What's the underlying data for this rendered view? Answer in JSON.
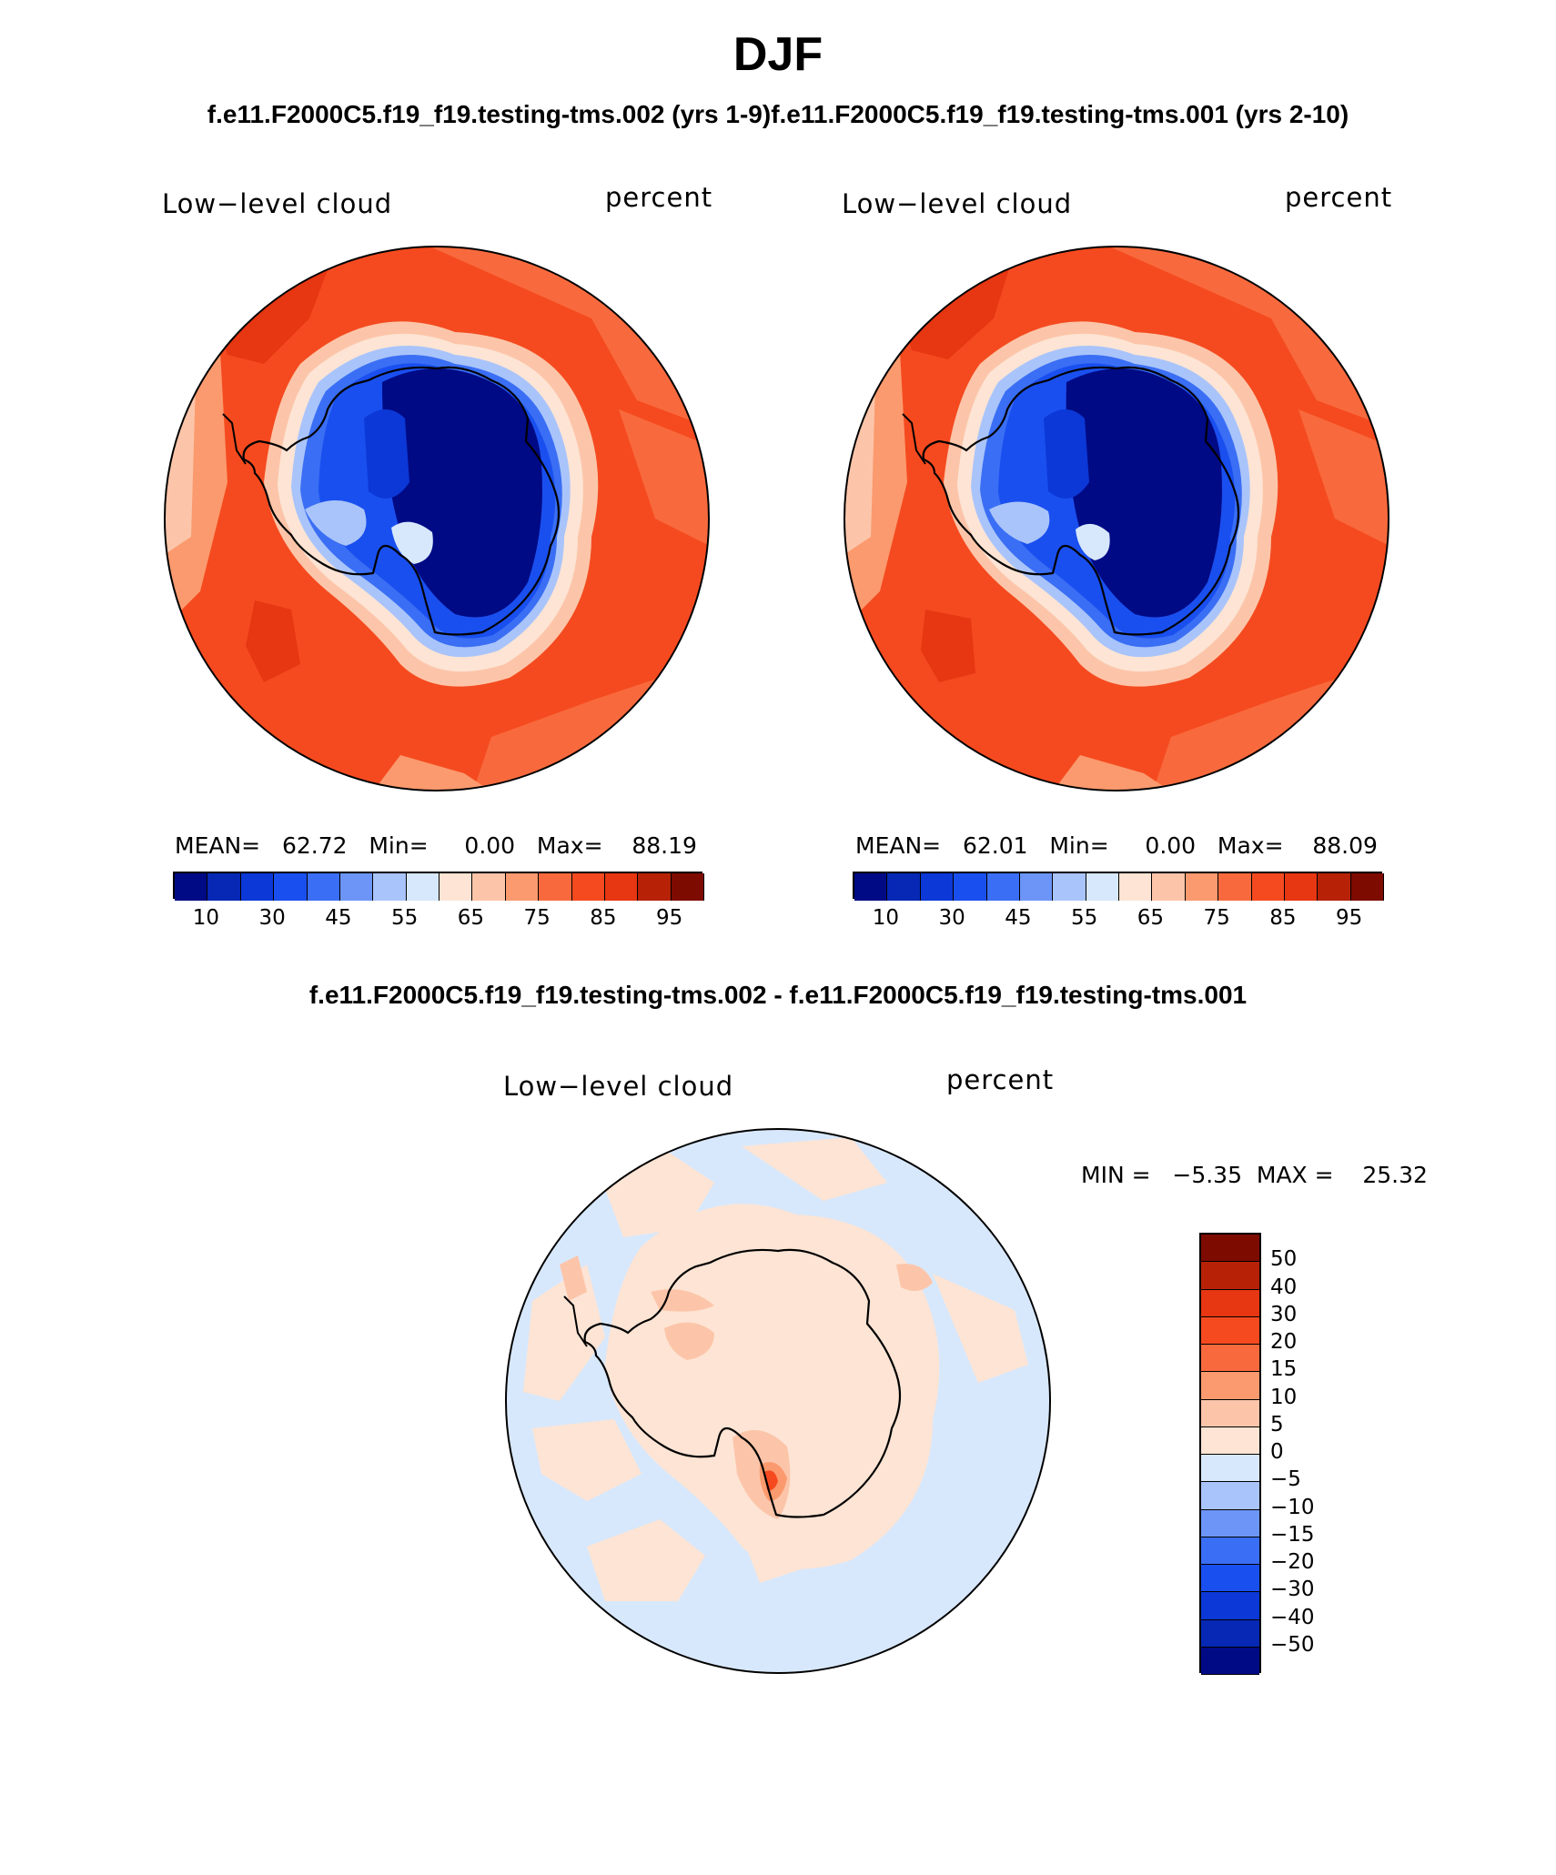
{
  "title": "DJF",
  "subtitle": "f.e11.F2000C5.f19_f19.testing-tms.002 (yrs 1-9)f.e11.F2000C5.f19_f19.testing-tms.001 (yrs 2-10)",
  "panels": [
    {
      "variable": "Low−level cloud",
      "units": "percent",
      "stats": "MEAN=   62.72   Min=     0.00   Max=    88.19"
    },
    {
      "variable": "Low−level cloud",
      "units": "percent",
      "stats": "MEAN=   62.01   Min=     0.00   Max=    88.09"
    }
  ],
  "colorbar": {
    "colors": [
      "#000a85",
      "#0628b4",
      "#0b38d6",
      "#1a4fef",
      "#3a6ef4",
      "#6c95f7",
      "#a9c4fa",
      "#d8e8fc",
      "#fde4d4",
      "#fcc5a9",
      "#fb9a6e",
      "#f86a3d",
      "#f54a1f",
      "#e63612",
      "#b72207",
      "#7d0b00"
    ],
    "tick_labels": [
      "10",
      "30",
      "45",
      "55",
      "65",
      "75",
      "85",
      "95"
    ]
  },
  "difference": {
    "title": "f.e11.F2000C5.f19_f19.testing-tms.002 - f.e11.F2000C5.f19_f19.testing-tms.001",
    "variable": "Low−level cloud",
    "units": "percent",
    "stats": "MIN =   −5.35  MAX =    25.32",
    "colorbar": {
      "colors_top_to_bottom": [
        "#7d0b00",
        "#b72207",
        "#e63612",
        "#f54a1f",
        "#f86a3d",
        "#fb9a6e",
        "#fcc5a9",
        "#fde4d4",
        "#d8e8fc",
        "#a9c4fa",
        "#6c95f7",
        "#3a6ef4",
        "#1a4fef",
        "#0b38d6",
        "#0628b4",
        "#000a85"
      ],
      "tick_labels": [
        "50",
        "40",
        "30",
        "20",
        "15",
        "10",
        "5",
        "0",
        "−5",
        "−10",
        "−15",
        "−20",
        "−30",
        "−40",
        "−50"
      ]
    }
  }
}
